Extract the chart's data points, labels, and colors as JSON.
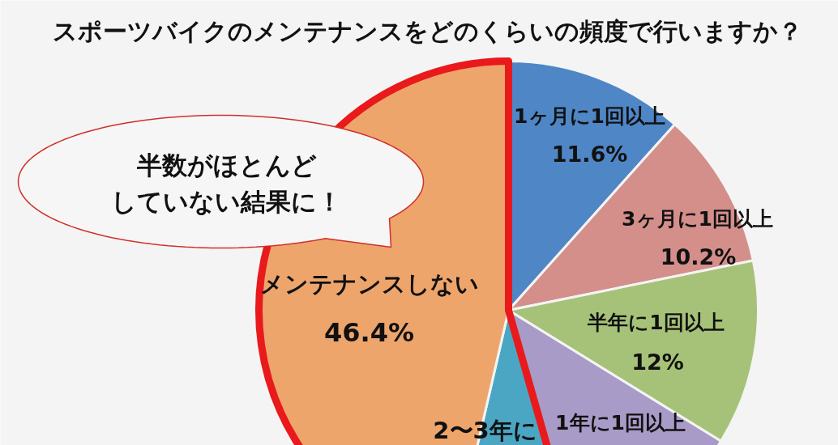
{
  "chart_data": {
    "type": "pie",
    "title": "スポーツバイクのメンテナンスをどのくらいの頻度で行いますか？",
    "categories": [
      "1ヶ月に1回以上",
      "3ヶ月に1回以上",
      "半年に1回以上",
      "1年に1回以上",
      "2〜3年に",
      "メンテナンスしない"
    ],
    "values": [
      11.6,
      10.2,
      12,
      11.8,
      8.0,
      46.4
    ],
    "colors": [
      "#4f86c6",
      "#d48f8b",
      "#a6c278",
      "#a89bc7",
      "#4ba6c4",
      "#eea56c"
    ],
    "value_labels": [
      "11.6%",
      "10.2%",
      "12%",
      null,
      null,
      "46.4%"
    ],
    "annotations": [
      "半数がほとんど",
      "していない結果に！"
    ]
  }
}
